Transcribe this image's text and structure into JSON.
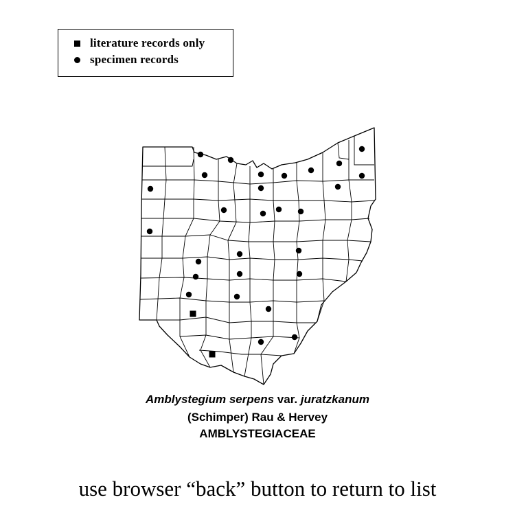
{
  "legend": {
    "literature_label": "literature records only",
    "specimen_label": "specimen records",
    "literature_symbol": "square",
    "specimen_symbol": "circle"
  },
  "map": {
    "region": "Ohio counties",
    "ink_color": "#000000"
  },
  "species": {
    "genus_species": "Amblystegium serpens",
    "rank": "var.",
    "variety": "juratzkanum",
    "authority": "(Schimper) Rau & Hervey",
    "family": "AMBLYSTEGIACEAE"
  },
  "footer": {
    "text": "use browser “back” button to return to list"
  }
}
